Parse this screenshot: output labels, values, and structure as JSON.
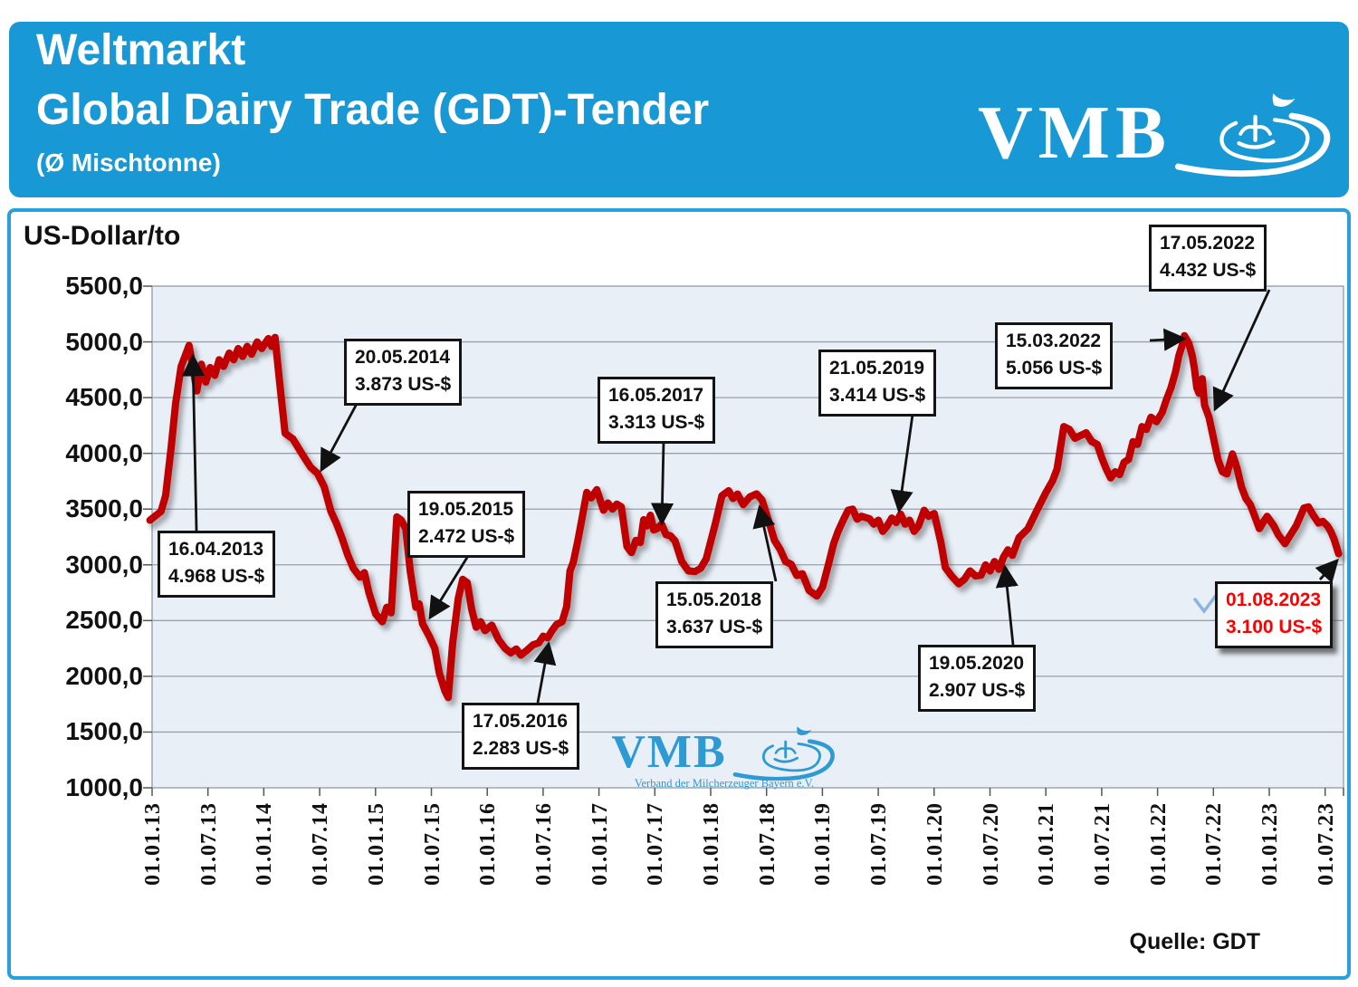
{
  "header": {
    "title_line1": "Weltmarkt",
    "title_line2": "Global Dairy Trade (GDT)-Tender",
    "subtitle": "(Ø Mischtonne)",
    "logo_text": "VMB"
  },
  "chart": {
    "source_label": "Quelle: GDT",
    "watermark_logo_text": "VMB",
    "watermark_caption": "Verband der Milcherzeuger Bayern e.V.",
    "colors": {
      "header_blue": "#1899D5",
      "card_border_blue": "#29A0DB",
      "plot_background": "#E9EFF7",
      "gridline_grey": "#97A1AC",
      "line_red": "#C00000",
      "annotation_border": "#141414",
      "highlight_red": "#FF0000",
      "check_mark_blue": "#8DB3E2",
      "watermark_blue": "#2E9AD3"
    }
  },
  "chart_data": {
    "type": "line",
    "title": "Weltmarkt Global Dairy Trade (GDT)-Tender (Ø Mischtonne)",
    "ylabel": "US-Dollar/to",
    "ylim": [
      1000,
      5500
    ],
    "grid": "horizontal",
    "legend": "none",
    "y_ticks": [
      "5500,0",
      "5000,0",
      "4500,0",
      "4000,0",
      "3500,0",
      "3000,0",
      "2500,0",
      "2000,0",
      "1500,0",
      "1000,0"
    ],
    "y_tick_values": [
      5500,
      5000,
      4500,
      4000,
      3500,
      3000,
      2500,
      2000,
      1500,
      1000
    ],
    "x_ticks": [
      "01.01.13",
      "01.07.13",
      "01.01.14",
      "01.07.14",
      "01.01.15",
      "01.07.15",
      "01.01.16",
      "01.07.16",
      "01.01.17",
      "01.07.17",
      "01.01.18",
      "01.07.18",
      "01.01.19",
      "01.07.19",
      "01.01.20",
      "01.07.20",
      "01.01.21",
      "01.07.21",
      "01.01.22",
      "01.07.22",
      "01.01.23",
      "01.07.23"
    ],
    "x_unit": "decimal_year",
    "series": [
      {
        "name": "GDT Ø Mischtonne US-Dollar/to",
        "points": [
          [
            2012.94,
            3400
          ],
          [
            2013.04,
            3480
          ],
          [
            2013.08,
            3620
          ],
          [
            2013.13,
            4050
          ],
          [
            2013.17,
            4450
          ],
          [
            2013.22,
            4780
          ],
          [
            2013.29,
            4968
          ],
          [
            2013.32,
            4800
          ],
          [
            2013.36,
            4560
          ],
          [
            2013.4,
            4800
          ],
          [
            2013.44,
            4640
          ],
          [
            2013.48,
            4770
          ],
          [
            2013.52,
            4700
          ],
          [
            2013.56,
            4840
          ],
          [
            2013.6,
            4780
          ],
          [
            2013.65,
            4900
          ],
          [
            2013.69,
            4840
          ],
          [
            2013.73,
            4940
          ],
          [
            2013.77,
            4870
          ],
          [
            2013.81,
            4960
          ],
          [
            2013.85,
            4890
          ],
          [
            2013.9,
            5000
          ],
          [
            2013.94,
            4940
          ],
          [
            2014.0,
            5030
          ],
          [
            2014.03,
            4960
          ],
          [
            2014.06,
            5040
          ],
          [
            2014.1,
            4650
          ],
          [
            2014.15,
            4180
          ],
          [
            2014.22,
            4130
          ],
          [
            2014.28,
            4030
          ],
          [
            2014.33,
            3950
          ],
          [
            2014.38,
            3873
          ],
          [
            2014.44,
            3820
          ],
          [
            2014.5,
            3700
          ],
          [
            2014.56,
            3480
          ],
          [
            2014.61,
            3370
          ],
          [
            2014.66,
            3240
          ],
          [
            2014.71,
            3090
          ],
          [
            2014.76,
            2970
          ],
          [
            2014.82,
            2890
          ],
          [
            2014.86,
            2930
          ],
          [
            2014.9,
            2750
          ],
          [
            2014.96,
            2560
          ],
          [
            2015.02,
            2490
          ],
          [
            2015.06,
            2620
          ],
          [
            2015.1,
            2570
          ],
          [
            2015.15,
            3430
          ],
          [
            2015.19,
            3400
          ],
          [
            2015.23,
            3325
          ],
          [
            2015.27,
            2945
          ],
          [
            2015.32,
            2620
          ],
          [
            2015.35,
            2650
          ],
          [
            2015.38,
            2472
          ],
          [
            2015.44,
            2360
          ],
          [
            2015.49,
            2250
          ],
          [
            2015.53,
            2030
          ],
          [
            2015.58,
            1870
          ],
          [
            2015.61,
            1810
          ],
          [
            2015.65,
            2300
          ],
          [
            2015.7,
            2700
          ],
          [
            2015.74,
            2870
          ],
          [
            2015.78,
            2840
          ],
          [
            2015.82,
            2600
          ],
          [
            2015.86,
            2440
          ],
          [
            2015.9,
            2490
          ],
          [
            2015.94,
            2410
          ],
          [
            2016.0,
            2460
          ],
          [
            2016.06,
            2330
          ],
          [
            2016.12,
            2250
          ],
          [
            2016.17,
            2210
          ],
          [
            2016.22,
            2245
          ],
          [
            2016.26,
            2190
          ],
          [
            2016.31,
            2230
          ],
          [
            2016.37,
            2283
          ],
          [
            2016.42,
            2300
          ],
          [
            2016.46,
            2360
          ],
          [
            2016.5,
            2345
          ],
          [
            2016.54,
            2410
          ],
          [
            2016.58,
            2465
          ],
          [
            2016.63,
            2490
          ],
          [
            2016.67,
            2625
          ],
          [
            2016.7,
            2945
          ],
          [
            2016.73,
            3025
          ],
          [
            2016.77,
            3215
          ],
          [
            2016.81,
            3430
          ],
          [
            2016.85,
            3650
          ],
          [
            2016.89,
            3600
          ],
          [
            2016.94,
            3675
          ],
          [
            2017.0,
            3490
          ],
          [
            2017.04,
            3555
          ],
          [
            2017.08,
            3500
          ],
          [
            2017.12,
            3545
          ],
          [
            2017.16,
            3520
          ],
          [
            2017.21,
            3165
          ],
          [
            2017.25,
            3110
          ],
          [
            2017.29,
            3220
          ],
          [
            2017.33,
            3200
          ],
          [
            2017.36,
            3405
          ],
          [
            2017.39,
            3350
          ],
          [
            2017.42,
            3445
          ],
          [
            2017.45,
            3313
          ],
          [
            2017.48,
            3325
          ],
          [
            2017.52,
            3365
          ],
          [
            2017.56,
            3270
          ],
          [
            2017.6,
            3260
          ],
          [
            2017.64,
            3215
          ],
          [
            2017.7,
            3030
          ],
          [
            2017.76,
            2945
          ],
          [
            2017.82,
            2940
          ],
          [
            2017.87,
            2970
          ],
          [
            2017.92,
            3055
          ],
          [
            2018.0,
            3365
          ],
          [
            2018.06,
            3620
          ],
          [
            2018.12,
            3665
          ],
          [
            2018.16,
            3595
          ],
          [
            2018.2,
            3635
          ],
          [
            2018.25,
            3540
          ],
          [
            2018.31,
            3610
          ],
          [
            2018.37,
            3637
          ],
          [
            2018.42,
            3580
          ],
          [
            2018.48,
            3390
          ],
          [
            2018.53,
            3220
          ],
          [
            2018.58,
            3140
          ],
          [
            2018.63,
            3030
          ],
          [
            2018.68,
            3005
          ],
          [
            2018.73,
            2905
          ],
          [
            2018.78,
            2920
          ],
          [
            2018.84,
            2770
          ],
          [
            2018.91,
            2720
          ],
          [
            2018.96,
            2800
          ],
          [
            2019.02,
            3030
          ],
          [
            2019.06,
            3190
          ],
          [
            2019.1,
            3300
          ],
          [
            2019.15,
            3410
          ],
          [
            2019.19,
            3490
          ],
          [
            2019.23,
            3500
          ],
          [
            2019.27,
            3410
          ],
          [
            2019.31,
            3435
          ],
          [
            2019.38,
            3414
          ],
          [
            2019.42,
            3365
          ],
          [
            2019.46,
            3400
          ],
          [
            2019.5,
            3300
          ],
          [
            2019.54,
            3350
          ],
          [
            2019.58,
            3420
          ],
          [
            2019.62,
            3380
          ],
          [
            2019.66,
            3455
          ],
          [
            2019.7,
            3365
          ],
          [
            2019.74,
            3400
          ],
          [
            2019.78,
            3300
          ],
          [
            2019.82,
            3350
          ],
          [
            2019.87,
            3490
          ],
          [
            2019.91,
            3435
          ],
          [
            2019.96,
            3460
          ],
          [
            2020.02,
            3200
          ],
          [
            2020.06,
            2975
          ],
          [
            2020.12,
            2895
          ],
          [
            2020.18,
            2830
          ],
          [
            2020.23,
            2870
          ],
          [
            2020.28,
            2945
          ],
          [
            2020.33,
            2900
          ],
          [
            2020.38,
            2907
          ],
          [
            2020.42,
            3000
          ],
          [
            2020.46,
            2945
          ],
          [
            2020.5,
            3030
          ],
          [
            2020.54,
            2960
          ],
          [
            2020.58,
            3070
          ],
          [
            2020.62,
            3135
          ],
          [
            2020.66,
            3085
          ],
          [
            2020.72,
            3245
          ],
          [
            2020.8,
            3325
          ],
          [
            2020.88,
            3490
          ],
          [
            2020.96,
            3650
          ],
          [
            2021.02,
            3755
          ],
          [
            2021.06,
            3860
          ],
          [
            2021.12,
            4240
          ],
          [
            2021.17,
            4215
          ],
          [
            2021.22,
            4135
          ],
          [
            2021.27,
            4160
          ],
          [
            2021.32,
            4185
          ],
          [
            2021.37,
            4105
          ],
          [
            2021.42,
            4080
          ],
          [
            2021.46,
            3960
          ],
          [
            2021.5,
            3860
          ],
          [
            2021.54,
            3780
          ],
          [
            2021.58,
            3835
          ],
          [
            2021.62,
            3810
          ],
          [
            2021.66,
            3920
          ],
          [
            2021.7,
            3945
          ],
          [
            2021.74,
            4105
          ],
          [
            2021.78,
            4080
          ],
          [
            2021.82,
            4240
          ],
          [
            2021.86,
            4215
          ],
          [
            2021.9,
            4325
          ],
          [
            2021.95,
            4284
          ],
          [
            2022.0,
            4365
          ],
          [
            2022.04,
            4485
          ],
          [
            2022.08,
            4590
          ],
          [
            2022.12,
            4730
          ],
          [
            2022.15,
            4875
          ],
          [
            2022.18,
            4970
          ],
          [
            2022.2,
            5056
          ],
          [
            2022.24,
            4985
          ],
          [
            2022.27,
            4875
          ],
          [
            2022.29,
            4755
          ],
          [
            2022.31,
            4590
          ],
          [
            2022.33,
            4540
          ],
          [
            2022.35,
            4633
          ],
          [
            2022.36,
            4670
          ],
          [
            2022.37,
            4540
          ],
          [
            2022.38,
            4432
          ],
          [
            2022.42,
            4325
          ],
          [
            2022.46,
            4135
          ],
          [
            2022.5,
            3945
          ],
          [
            2022.54,
            3835
          ],
          [
            2022.58,
            3815
          ],
          [
            2022.63,
            3995
          ],
          [
            2022.67,
            3870
          ],
          [
            2022.71,
            3700
          ],
          [
            2022.75,
            3595
          ],
          [
            2022.79,
            3540
          ],
          [
            2022.83,
            3435
          ],
          [
            2022.87,
            3325
          ],
          [
            2022.9,
            3375
          ],
          [
            2022.94,
            3435
          ],
          [
            2023.0,
            3350
          ],
          [
            2023.04,
            3270
          ],
          [
            2023.1,
            3190
          ],
          [
            2023.15,
            3270
          ],
          [
            2023.2,
            3350
          ],
          [
            2023.27,
            3510
          ],
          [
            2023.31,
            3520
          ],
          [
            2023.35,
            3450
          ],
          [
            2023.4,
            3375
          ],
          [
            2023.44,
            3390
          ],
          [
            2023.48,
            3350
          ],
          [
            2023.51,
            3300
          ],
          [
            2023.54,
            3230
          ],
          [
            2023.58,
            3100
          ]
        ]
      }
    ],
    "annotations": [
      {
        "id": "a2013",
        "date": "16.04.2013",
        "value": "4.968 US-$"
      },
      {
        "id": "a2014",
        "date": "20.05.2014",
        "value": "3.873 US-$"
      },
      {
        "id": "a2015",
        "date": "19.05.2015",
        "value": "2.472 US-$"
      },
      {
        "id": "a2016",
        "date": "17.05.2016",
        "value": "2.283 US-$"
      },
      {
        "id": "a2017",
        "date": "16.05.2017",
        "value": "3.313 US-$"
      },
      {
        "id": "a2018",
        "date": "15.05.2018",
        "value": "3.637 US-$"
      },
      {
        "id": "a2019",
        "date": "21.05.2019",
        "value": "3.414 US-$"
      },
      {
        "id": "a2020",
        "date": "19.05.2020",
        "value": "2.907 US-$"
      },
      {
        "id": "a2022a",
        "date": "15.03.2022",
        "value": "5.056 US-$"
      },
      {
        "id": "a2022b",
        "date": "17.05.2022",
        "value": "4.432 US-$"
      },
      {
        "id": "a2023",
        "date": "01.08.2023",
        "value": "3.100 US-$",
        "highlight": true
      }
    ]
  }
}
